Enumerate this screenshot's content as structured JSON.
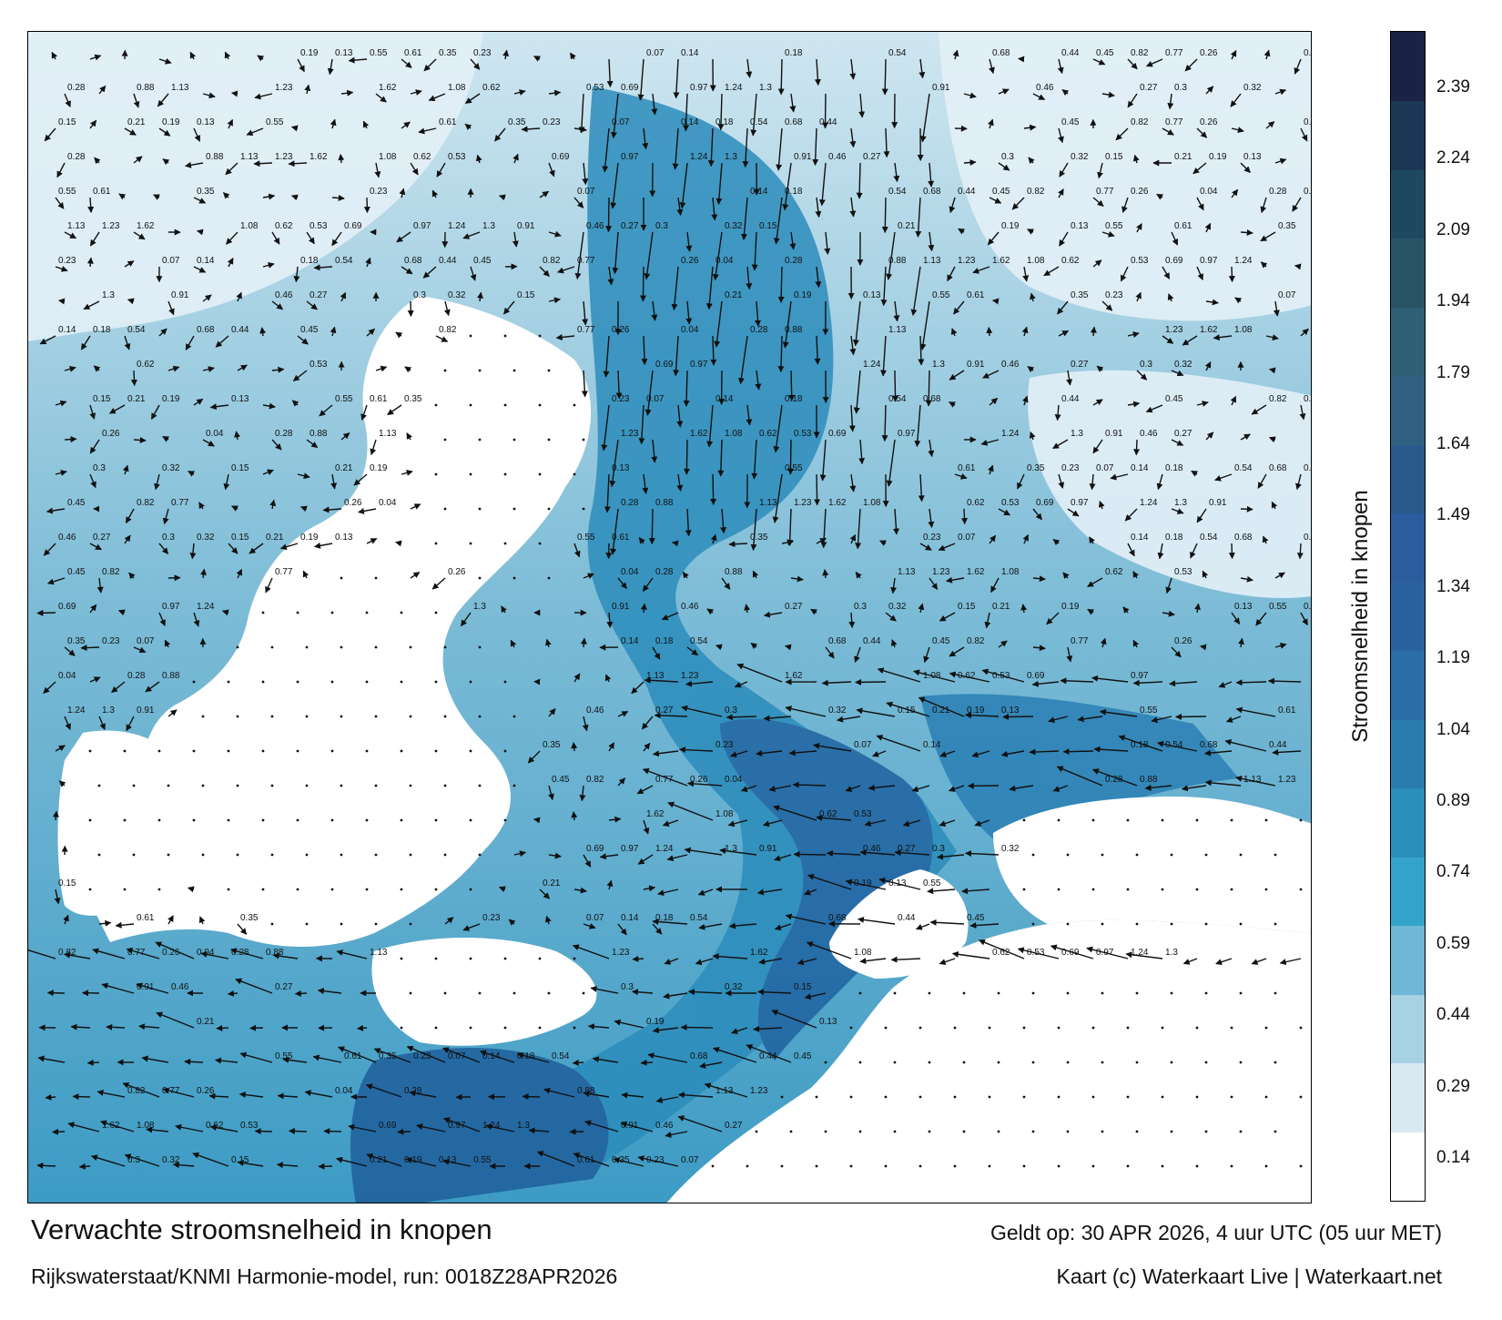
{
  "map": {
    "title": "Verwachte stroomsnelheid in knopen",
    "subtitle": "Rijkswaterstaat/KNMI Harmonie-model, run: 0018Z28APR2026",
    "valid_time": "Geldt op: 30 APR 2026, 4 uur UTC (05 uur MET)",
    "credit": "Kaart (c) Waterkaart Live | Waterkaart.net",
    "colors": {
      "land": "#ffffff",
      "water_low": "#eaf3f8",
      "water_mid": "#2b8cb8",
      "water_high": "#1e5a96",
      "arrow": "#111111"
    }
  },
  "colorbar": {
    "label": "Stroomsnelheid in knopen",
    "ticks": [
      "2.39",
      "2.24",
      "2.09",
      "1.94",
      "1.79",
      "1.64",
      "1.49",
      "1.34",
      "1.19",
      "1.04",
      "0.89",
      "0.74",
      "0.59",
      "0.44",
      "0.29",
      "0.14"
    ],
    "colors": [
      "#ffffff",
      "#d8e9f2",
      "#a9d1e4",
      "#6fb7d6",
      "#34a3c9",
      "#2a8fba",
      "#2a7cae",
      "#2a6ea7",
      "#2a62a0",
      "#2a5c9e",
      "#2a5a8c",
      "#2f6080",
      "#2e5f74",
      "#2a5466",
      "#204760",
      "#1d3656",
      "#1a2346"
    ]
  },
  "samples": {
    "labels": [
      {
        "v": "0.19",
        "k": "vl"
      },
      {
        "v": "0.13",
        "k": "vl"
      },
      {
        "v": "0.55",
        "k": "vl"
      },
      {
        "v": "0.61",
        "k": "vl"
      },
      {
        "v": "0.35",
        "k": "vl"
      },
      {
        "v": "0.23",
        "k": "vl"
      },
      {
        "v": "0.07",
        "k": "vl"
      },
      {
        "v": "0.14",
        "k": "vl"
      },
      {
        "v": "0.18",
        "k": "vl"
      },
      {
        "v": "0.54",
        "k": "vl"
      },
      {
        "v": "0.68",
        "k": "vl"
      },
      {
        "v": "0.44",
        "k": "vl"
      },
      {
        "v": "0.45",
        "k": "vl"
      },
      {
        "v": "0.82",
        "k": "vl"
      },
      {
        "v": "0.77",
        "k": "vl"
      },
      {
        "v": "0.26",
        "k": "vl"
      },
      {
        "v": "0.04",
        "k": "vl"
      },
      {
        "v": "0.28",
        "k": "vl"
      },
      {
        "v": "0.88",
        "k": "vl"
      },
      {
        "v": "1.13",
        "k": "vl"
      },
      {
        "v": "1.23",
        "k": "vl"
      },
      {
        "v": "1.62",
        "k": "vl"
      },
      {
        "v": "1.08",
        "k": "vl"
      },
      {
        "v": "0.62",
        "k": "vl"
      },
      {
        "v": "0.53",
        "k": "vl"
      },
      {
        "v": "0.69",
        "k": "vl"
      },
      {
        "v": "0.97",
        "k": "vl"
      },
      {
        "v": "1.24",
        "k": "vl"
      },
      {
        "v": "1.3",
        "k": "vl"
      },
      {
        "v": "0.91",
        "k": "vl"
      },
      {
        "v": "0.46",
        "k": "vl"
      },
      {
        "v": "0.27",
        "k": "vl"
      },
      {
        "v": "0.3",
        "k": "vl"
      },
      {
        "v": "0.32",
        "k": "vl"
      },
      {
        "v": "0.15",
        "k": "vl"
      },
      {
        "v": "0.21",
        "k": "vl"
      }
    ]
  }
}
